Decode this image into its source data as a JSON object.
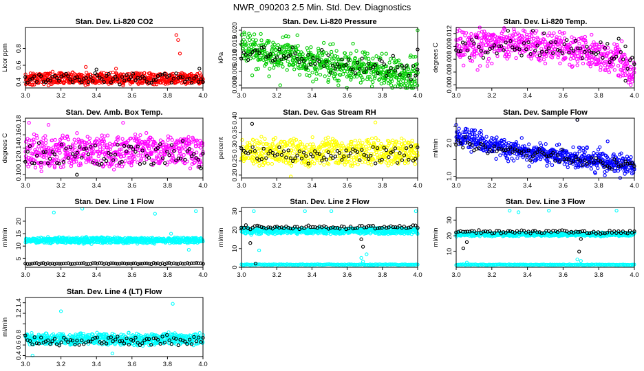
{
  "title": "NWR_090203  2.5 Min. Std. Dev. Diagnostics",
  "colors": {
    "red": "#ff0000",
    "green": "#00cc00",
    "magenta": "#ff00ff",
    "yellow": "#ffff00",
    "blue": "#0000ff",
    "cyan": "#00ffff",
    "black": "#000000"
  },
  "chart_data": [
    {
      "type": "scatter",
      "title": "Stan. Dev. Li-820 CO2",
      "ylabel": "Licor ppm",
      "xlim": [
        3.0,
        4.0
      ],
      "ylim": [
        0.33,
        1.05
      ],
      "xticks": [
        "3.0",
        "3.2",
        "3.4",
        "3.6",
        "3.8",
        "4.0"
      ],
      "yticks": [
        0.4,
        0.6,
        0.8
      ],
      "ytick_labels": [
        "0.4",
        "0.6",
        "0.8"
      ],
      "series_main": {
        "color": "red",
        "band": [
          0.38,
          0.5
        ],
        "spread": 0.03,
        "outliers": [
          [
            3.34,
            0.58
          ],
          [
            3.51,
            0.56
          ],
          [
            3.13,
            0.36
          ],
          [
            3.85,
            0.96
          ],
          [
            3.86,
            0.9
          ],
          [
            3.87,
            0.74
          ],
          [
            3.55,
            0.36
          ]
        ]
      },
      "series_black": {
        "band": [
          0.38,
          0.5
        ],
        "spread": 0.02,
        "outliers": [
          [
            3.4,
            0.55
          ],
          [
            3.98,
            0.56
          ]
        ]
      }
    },
    {
      "type": "scatter",
      "title": "Stan. Dev. Li-820 Pressure",
      "ylabel": "kPa",
      "xlim": [
        3.0,
        4.0
      ],
      "ylim": [
        -0.001,
        0.021
      ],
      "xticks": [
        "3.0",
        "3.2",
        "3.4",
        "3.6",
        "3.8",
        "4.0"
      ],
      "yticks": [
        0.0,
        0.005,
        0.01,
        0.015,
        0.02
      ],
      "ytick_labels": [
        "0.000",
        "0.005",
        "0.010",
        "0.015",
        "0.020"
      ],
      "series_main": {
        "color": "green",
        "trend": [
          [
            3.0,
            0.013
          ],
          [
            3.5,
            0.008
          ],
          [
            4.0,
            0.003
          ]
        ],
        "spread": 0.003,
        "outliers": [
          [
            3.55,
            0.0
          ],
          [
            3.85,
            0.0
          ],
          [
            3.7,
            0.012
          ],
          [
            3.52,
            0.015
          ],
          [
            4.0,
            0.02
          ],
          [
            3.22,
            0.0
          ]
        ]
      },
      "series_black": {
        "trend": [
          [
            3.0,
            0.012
          ],
          [
            3.5,
            0.008
          ],
          [
            4.0,
            0.005
          ]
        ],
        "spread": 0.002,
        "outliers": [
          [
            4.0,
            0.013
          ]
        ]
      }
    },
    {
      "type": "scatter",
      "title": "Stan. Dev. Li-820 Temp.",
      "ylabel": "degrees C",
      "xlim": [
        3.0,
        4.0
      ],
      "ylim": [
        -0.0007,
        0.0134
      ],
      "xticks": [
        "3.0",
        "3.2",
        "3.4",
        "3.6",
        "3.8",
        "4.0"
      ],
      "yticks": [
        0.0,
        0.003,
        0.006,
        0.009,
        0.012
      ],
      "ytick_labels": [
        "0.000",
        "0.003",
        "0.006",
        "0.009",
        "0.012"
      ],
      "series_main": {
        "color": "magenta",
        "trend": [
          [
            3.0,
            0.009
          ],
          [
            3.2,
            0.01
          ],
          [
            3.6,
            0.009
          ],
          [
            3.9,
            0.006
          ],
          [
            4.0,
            0.003
          ]
        ],
        "spread": 0.0018,
        "outliers": [
          [
            3.12,
            0.0035
          ],
          [
            3.2,
            0.005
          ],
          [
            3.5,
            0.005
          ],
          [
            3.98,
            0.0
          ]
        ]
      },
      "series_black": {
        "trend": [
          [
            3.0,
            0.009
          ],
          [
            3.6,
            0.009
          ],
          [
            3.95,
            0.006
          ]
        ],
        "spread": 0.0015,
        "outliers": [
          [
            3.95,
            0.001
          ]
        ]
      }
    },
    {
      "type": "scatter",
      "title": "Stan. Dev. Amb. Box Temp.",
      "ylabel": "degrees C",
      "xlim": [
        3.0,
        4.0
      ],
      "ylim": [
        0.095,
        0.185
      ],
      "xticks": [
        "3.0",
        "3.2",
        "3.4",
        "3.6",
        "3.8",
        "4.0"
      ],
      "yticks": [
        0.1,
        0.12,
        0.14,
        0.16,
        0.18
      ],
      "ytick_labels": [
        "0.10",
        "0.12",
        "0.14",
        "0.16",
        "0.18"
      ],
      "series_main": {
        "color": "magenta",
        "band": [
          0.115,
          0.155
        ],
        "spread": 0.012,
        "outliers": [
          [
            3.02,
            0.178
          ],
          [
            3.13,
            0.175
          ],
          [
            3.55,
            0.178
          ],
          [
            3.09,
            0.105
          ]
        ]
      },
      "series_black": {
        "band": [
          0.115,
          0.145
        ],
        "spread": 0.008,
        "outliers": [
          [
            3.29,
            0.1
          ],
          [
            3.98,
            0.112
          ]
        ]
      }
    },
    {
      "type": "scatter",
      "title": "Stan. Dev. Gas Stream RH",
      "ylabel": "percent",
      "xlim": [
        3.0,
        4.0
      ],
      "ylim": [
        0.19,
        0.4
      ],
      "xticks": [
        "3.0",
        "3.2",
        "3.4",
        "3.6",
        "3.8",
        "4.0"
      ],
      "yticks": [
        0.2,
        0.25,
        0.3,
        0.35,
        0.4
      ],
      "ytick_labels": [
        "0.20",
        "0.25",
        "0.30",
        "0.35",
        "0.40"
      ],
      "series_main": {
        "color": "yellow",
        "band": [
          0.24,
          0.32
        ],
        "spread": 0.025,
        "outliers": [
          [
            3.76,
            0.385
          ],
          [
            3.28,
            0.195
          ]
        ]
      },
      "series_black": {
        "band": [
          0.25,
          0.3
        ],
        "spread": 0.015,
        "outliers": [
          [
            3.06,
            0.38
          ]
        ]
      }
    },
    {
      "type": "scatter",
      "title": "Stan. Dev. Sample Flow",
      "ylabel": "ml/min",
      "xlim": [
        3.0,
        4.0
      ],
      "ylim": [
        0.95,
        2.75
      ],
      "xticks": [
        "3.0",
        "3.2",
        "3.4",
        "3.6",
        "3.8",
        "4.0"
      ],
      "yticks": [
        1.0,
        1.5,
        2.0,
        2.5
      ],
      "ytick_labels": [
        "1.0",
        "",
        "2.0",
        ""
      ],
      "series_main": {
        "color": "blue",
        "trend": [
          [
            3.0,
            2.2
          ],
          [
            3.3,
            1.8
          ],
          [
            3.6,
            1.6
          ],
          [
            4.0,
            1.3
          ]
        ],
        "spread": 0.15,
        "outliers": [
          [
            3.0,
            2.55
          ],
          [
            3.68,
            2.7
          ],
          [
            3.85,
            2.05
          ]
        ]
      },
      "series_black": {
        "trend": [
          [
            3.0,
            2.0
          ],
          [
            3.5,
            1.6
          ],
          [
            4.0,
            1.35
          ]
        ],
        "spread": 0.1,
        "outliers": [
          [
            3.68,
            2.7
          ]
        ]
      }
    },
    {
      "type": "scatter",
      "title": "Stan. Dev. Line 1 Flow",
      "ylabel": "ml/min",
      "xlim": [
        3.0,
        4.0
      ],
      "ylim": [
        1.5,
        25.5
      ],
      "xticks": [
        "3.0",
        "3.2",
        "3.4",
        "3.6",
        "3.8",
        "4.0"
      ],
      "yticks": [
        5,
        10,
        15,
        20
      ],
      "ytick_labels": [
        "5",
        "10",
        "15",
        "20"
      ],
      "series_main": {
        "color": "cyan",
        "band": [
          11.3,
          13.3
        ],
        "spread": 0.6,
        "outliers": [
          [
            3.16,
            23.5
          ],
          [
            3.32,
            25.0
          ],
          [
            3.73,
            23.0
          ],
          [
            3.96,
            24.0
          ],
          [
            3.92,
            8.5
          ],
          [
            3.82,
            15.0
          ]
        ]
      },
      "series_black": {
        "band": [
          2.8,
          3.2
        ],
        "spread": 0.1,
        "outliers": []
      }
    },
    {
      "type": "scatter",
      "title": "Stan. Dev. Line 2 Flow",
      "ylabel": "ml/min",
      "xlim": [
        3.0,
        4.0
      ],
      "ylim": [
        0,
        32
      ],
      "xticks": [
        "3.0",
        "3.2",
        "3.4",
        "3.6",
        "3.8",
        "4.0"
      ],
      "yticks": [
        0,
        10,
        20,
        30
      ],
      "ytick_labels": [
        "0",
        "10",
        "20",
        "30"
      ],
      "series_main": {
        "color": "cyan",
        "band": [
          18.0,
          21.0
        ],
        "spread": 0.8,
        "outliers": [
          [
            3.07,
            30
          ],
          [
            3.51,
            30
          ],
          [
            3.36,
            30
          ],
          [
            3.99,
            30
          ],
          [
            3.68,
            5
          ],
          [
            3.69,
            3
          ],
          [
            3.71,
            7
          ],
          [
            3.1,
            9
          ]
        ]
      },
      "series_low": {
        "color": "cyan",
        "band": [
          1.2,
          1.6
        ],
        "spread": 0.2
      },
      "series_black": {
        "band": [
          20.5,
          22.5
        ],
        "spread": 0.5,
        "outliers": [
          [
            3.05,
            13
          ],
          [
            3.08,
            2
          ],
          [
            3.68,
            15
          ],
          [
            3.69,
            11
          ]
        ]
      }
    },
    {
      "type": "scatter",
      "title": "Stan. Dev. Line 3 Flow",
      "ylabel": "ml/min",
      "xlim": [
        3.0,
        4.0
      ],
      "ylim": [
        0,
        38
      ],
      "xticks": [
        "3.0",
        "3.2",
        "3.4",
        "3.6",
        "3.8",
        "4.0"
      ],
      "yticks": [
        10,
        20,
        30
      ],
      "ytick_labels": [
        "10",
        "20",
        "30"
      ],
      "series_main": {
        "color": "cyan",
        "band": [
          20.0,
          22.0
        ],
        "spread": 0.6,
        "outliers": [
          [
            3.3,
            36
          ],
          [
            3.52,
            36
          ],
          [
            3.9,
            36
          ],
          [
            3.35,
            35
          ],
          [
            3.06,
            3
          ],
          [
            3.68,
            5
          ],
          [
            3.7,
            4
          ]
        ]
      },
      "series_low": {
        "color": "cyan",
        "band": [
          1.4,
          1.8
        ],
        "spread": 0.2
      },
      "series_black": {
        "band": [
          21.5,
          23.5
        ],
        "spread": 0.5,
        "outliers": [
          [
            3.04,
            12
          ],
          [
            3.06,
            16
          ],
          [
            3.69,
            10
          ],
          [
            3.7,
            18
          ]
        ]
      }
    },
    {
      "type": "scatter",
      "title": "Stan. Dev. Line 4 (LT) Flow",
      "ylabel": "ml/min",
      "xlim": [
        3.0,
        4.0
      ],
      "ylim": [
        0.38,
        1.5
      ],
      "xticks": [
        "3.0",
        "3.2",
        "3.4",
        "3.6",
        "3.8",
        "4.0"
      ],
      "yticks": [
        0.4,
        0.6,
        0.8,
        1.0,
        1.2,
        1.4
      ],
      "ytick_labels": [
        "0.4",
        "0.6",
        "0.8",
        "",
        "1.2",
        "1.4"
      ],
      "series_main": {
        "color": "cyan",
        "band": [
          0.62,
          0.8
        ],
        "spread": 0.06,
        "outliers": [
          [
            3.2,
            1.24
          ],
          [
            3.83,
            1.38
          ],
          [
            3.49,
            0.44
          ],
          [
            3.04,
            0.4
          ]
        ]
      },
      "series_black": {
        "band": [
          0.6,
          0.76
        ],
        "spread": 0.04,
        "outliers": []
      }
    }
  ]
}
